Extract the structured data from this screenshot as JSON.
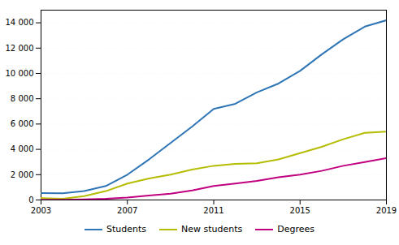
{
  "chart_data": {
    "type": "line",
    "x": [
      2003,
      2004,
      2005,
      2006,
      2007,
      2008,
      2009,
      2010,
      2011,
      2012,
      2013,
      2014,
      2015,
      2016,
      2017,
      2018,
      2019
    ],
    "series": [
      {
        "name": "Students",
        "color": "#2e75b6",
        "values": [
          550,
          530,
          700,
          1100,
          2000,
          3200,
          4500,
          5800,
          7200,
          7600,
          8500,
          9200,
          10200,
          11500,
          12700,
          13700,
          14200
        ]
      },
      {
        "name": "New students",
        "color": "#b5bd00",
        "values": [
          150,
          100,
          300,
          700,
          1300,
          1700,
          2000,
          2400,
          2700,
          2850,
          2900,
          3200,
          3700,
          4200,
          4800,
          5300,
          5400
        ]
      },
      {
        "name": "Degrees",
        "color": "#c00080",
        "values": [
          20,
          10,
          50,
          100,
          200,
          350,
          500,
          750,
          1100,
          1300,
          1500,
          1800,
          2000,
          2300,
          2700,
          3000,
          3300
        ]
      }
    ],
    "xlim": [
      2003,
      2019
    ],
    "xticks": [
      2003,
      2007,
      2011,
      2015,
      2019
    ],
    "ylim": [
      0,
      15000
    ],
    "yticks": [
      0,
      {
        "value": 2000,
        "label": "2 000"
      },
      {
        "value": 4000,
        "label": "4 000"
      },
      {
        "value": 6000,
        "label": "6 000"
      },
      {
        "value": 8000,
        "label": "8 000"
      },
      {
        "value": 10000,
        "label": "10 000"
      },
      {
        "value": 12000,
        "label": "12 000"
      },
      {
        "value": 14000,
        "label": "14 000"
      }
    ],
    "grid": true,
    "legend": "bottom"
  }
}
